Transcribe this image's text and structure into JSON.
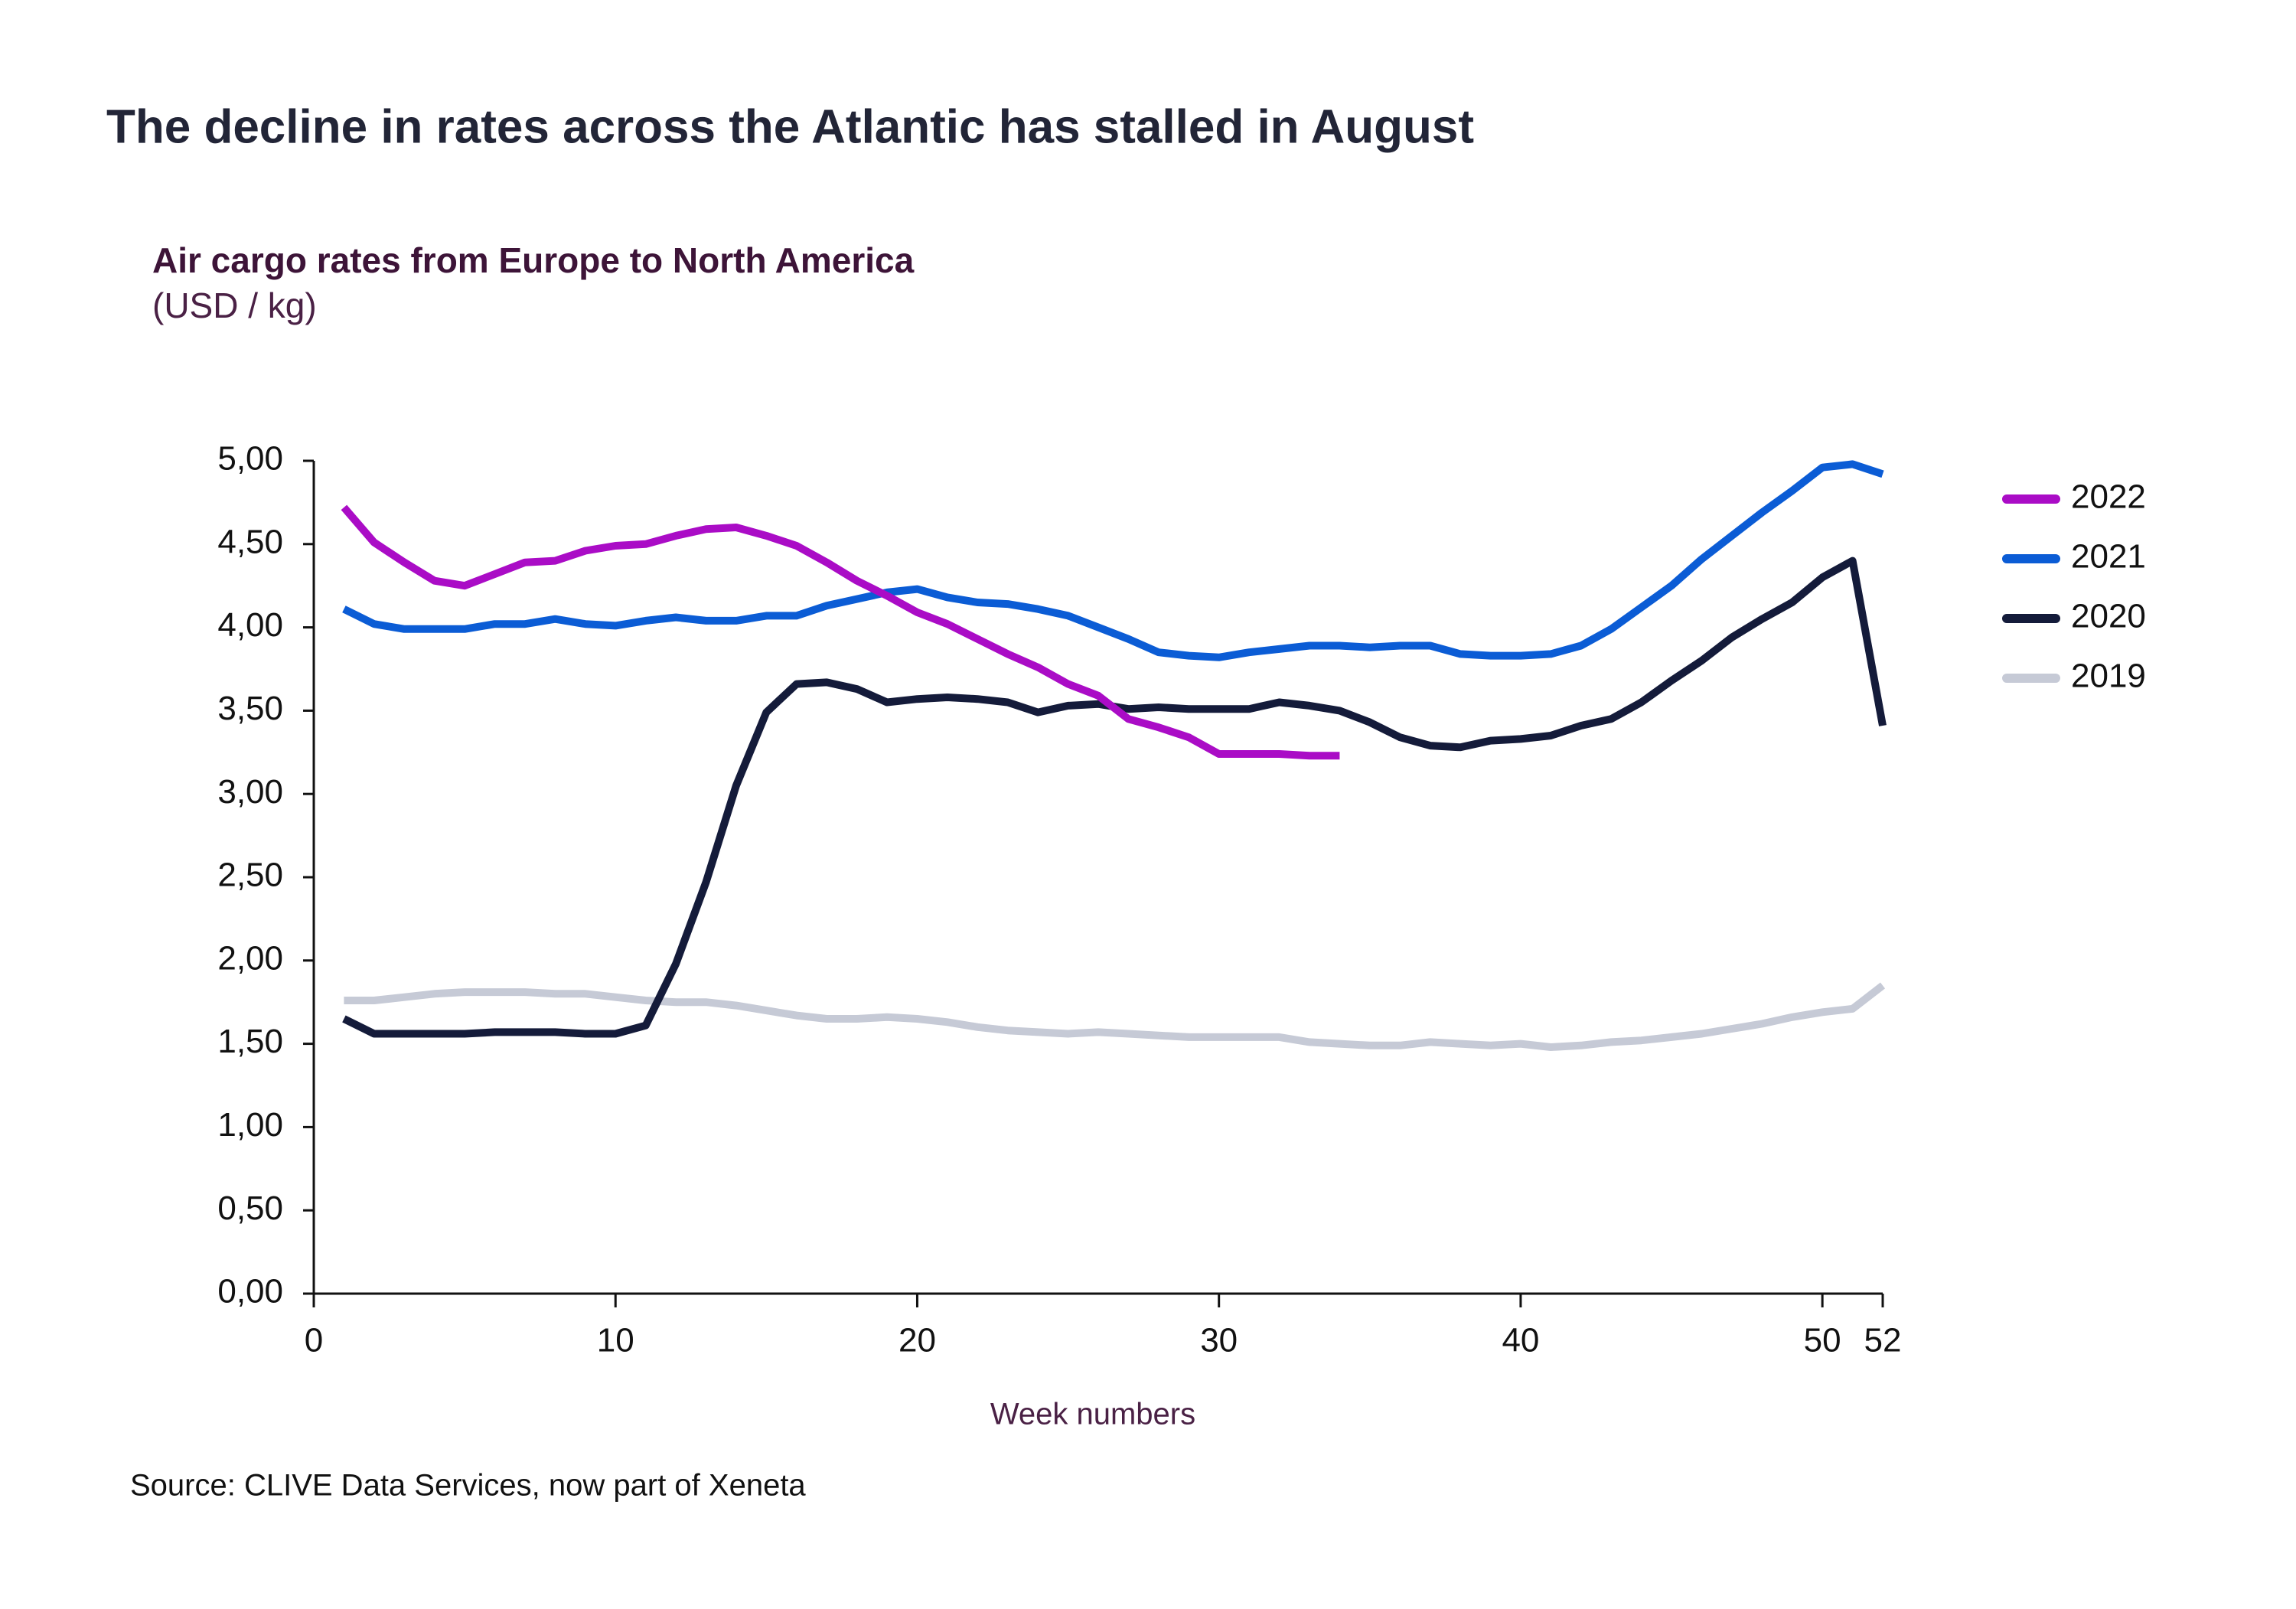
{
  "chart_data": {
    "type": "line",
    "title": "The decline in rates across the Atlantic has stalled in August",
    "subtitle": "Air cargo rates from Europe to North America",
    "y_axis_label": "(USD / kg)",
    "x_axis_label": "Week numbers",
    "source": "Source: CLIVE Data Services, now part of Xeneta",
    "x": [
      1,
      2,
      3,
      4,
      5,
      6,
      7,
      8,
      9,
      10,
      11,
      12,
      13,
      14,
      15,
      16,
      17,
      18,
      19,
      20,
      21,
      22,
      23,
      24,
      25,
      26,
      27,
      28,
      29,
      30,
      31,
      32,
      33,
      34,
      35,
      36,
      37,
      38,
      39,
      40,
      41,
      42,
      43,
      44,
      45,
      46,
      47,
      48,
      49,
      50,
      51,
      52
    ],
    "series": [
      {
        "name": "2022",
        "color": "#aa0cc6",
        "values": [
          4.72,
          4.51,
          4.39,
          4.28,
          4.25,
          4.32,
          4.39,
          4.4,
          4.46,
          4.49,
          4.5,
          4.55,
          4.59,
          4.6,
          4.55,
          4.49,
          4.39,
          4.28,
          4.19,
          4.09,
          4.02,
          3.93,
          3.84,
          3.76,
          3.66,
          3.59,
          3.45,
          3.4,
          3.34,
          3.24,
          3.24,
          3.24,
          3.23,
          3.23,
          null,
          null,
          null,
          null,
          null,
          null,
          null,
          null,
          null,
          null,
          null,
          null,
          null,
          null,
          null,
          null,
          null,
          null
        ]
      },
      {
        "name": "2021",
        "color": "#0b5cd5",
        "values": [
          4.11,
          4.02,
          3.99,
          3.99,
          3.99,
          4.02,
          4.02,
          4.05,
          4.02,
          4.01,
          4.04,
          4.06,
          4.04,
          4.04,
          4.07,
          4.07,
          4.13,
          4.17,
          4.21,
          4.23,
          4.18,
          4.15,
          4.14,
          4.11,
          4.07,
          4.0,
          3.93,
          3.85,
          3.83,
          3.82,
          3.85,
          3.87,
          3.89,
          3.89,
          3.88,
          3.89,
          3.89,
          3.84,
          3.83,
          3.83,
          3.84,
          3.89,
          3.99,
          4.12,
          4.25,
          4.41,
          4.55,
          4.69,
          4.82,
          4.96,
          4.98,
          4.92
        ]
      },
      {
        "name": "2020",
        "color": "#141b3a",
        "values": [
          1.65,
          1.56,
          1.56,
          1.56,
          1.56,
          1.57,
          1.57,
          1.57,
          1.56,
          1.56,
          1.61,
          1.98,
          2.47,
          3.05,
          3.49,
          3.66,
          3.67,
          3.63,
          3.55,
          3.57,
          3.58,
          3.57,
          3.55,
          3.49,
          3.53,
          3.54,
          3.51,
          3.52,
          3.51,
          3.51,
          3.51,
          3.55,
          3.53,
          3.5,
          3.43,
          3.34,
          3.29,
          3.28,
          3.32,
          3.33,
          3.35,
          3.41,
          3.45,
          3.55,
          3.68,
          3.8,
          3.94,
          4.05,
          4.15,
          4.3,
          4.4,
          3.41
        ]
      },
      {
        "name": "2019",
        "color": "#c6cad6",
        "values": [
          1.76,
          1.76,
          1.78,
          1.8,
          1.81,
          1.81,
          1.81,
          1.8,
          1.8,
          1.78,
          1.76,
          1.75,
          1.75,
          1.73,
          1.7,
          1.67,
          1.65,
          1.65,
          1.66,
          1.65,
          1.63,
          1.6,
          1.58,
          1.57,
          1.56,
          1.57,
          1.56,
          1.55,
          1.54,
          1.54,
          1.54,
          1.54,
          1.51,
          1.5,
          1.49,
          1.49,
          1.51,
          1.5,
          1.49,
          1.5,
          1.48,
          1.49,
          1.51,
          1.52,
          1.54,
          1.56,
          1.59,
          1.62,
          1.66,
          1.69,
          1.71,
          1.85
        ]
      }
    ],
    "xlim": [
      0,
      52
    ],
    "xticks": [
      0,
      10,
      20,
      30,
      40,
      50,
      52
    ],
    "ylim": [
      0,
      5
    ],
    "yticks": [
      {
        "value": 0,
        "label": "0,00"
      },
      {
        "value": 0.5,
        "label": "0,50"
      },
      {
        "value": 1,
        "label": "1,00"
      },
      {
        "value": 1.5,
        "label": "1,50"
      },
      {
        "value": 2,
        "label": "2,00"
      },
      {
        "value": 2.5,
        "label": "2,50"
      },
      {
        "value": 3,
        "label": "3,00"
      },
      {
        "value": 3.5,
        "label": "3,50"
      },
      {
        "value": 4,
        "label": "4,00"
      },
      {
        "value": 4.5,
        "label": "4,50"
      },
      {
        "value": 5,
        "label": "5,00"
      }
    ],
    "grid": false,
    "legend": "right"
  }
}
